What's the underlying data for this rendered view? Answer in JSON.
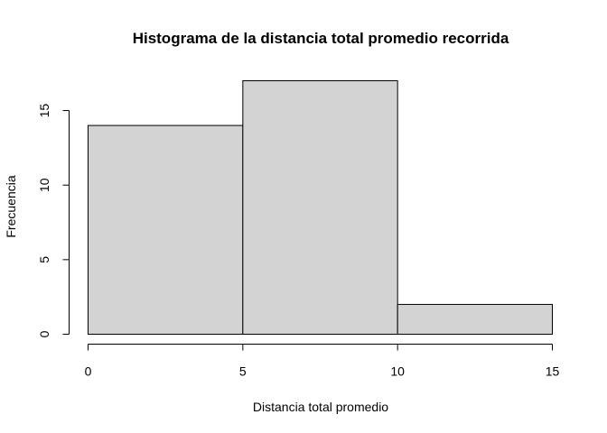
{
  "chart_data": {
    "type": "bar",
    "title": "Histograma de la distancia total promedio recorrida",
    "xlabel": "Distancia total promedio",
    "ylabel": "Frecuencia",
    "bins": [
      {
        "from": 0,
        "to": 5,
        "count": 14
      },
      {
        "from": 5,
        "to": 10,
        "count": 17
      },
      {
        "from": 10,
        "to": 15,
        "count": 2
      }
    ],
    "xlim": [
      0,
      15
    ],
    "ylim": [
      0,
      17
    ],
    "x_ticks": [
      0,
      5,
      10,
      15
    ],
    "y_ticks": [
      0,
      5,
      10,
      15
    ],
    "grid": false,
    "legend": "none",
    "colors": {
      "bar_fill": "#d3d3d3",
      "bar_stroke": "#000000"
    }
  }
}
